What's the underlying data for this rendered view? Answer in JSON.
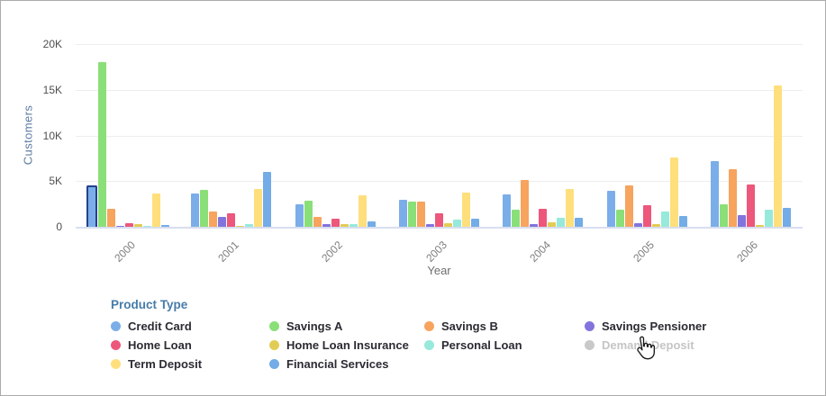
{
  "widget": {
    "background": "#FFFFFF",
    "border_color": "#ABABAB"
  },
  "chart_data": {
    "type": "bar",
    "title": "",
    "xlabel": "Year",
    "ylabel": "Customers",
    "categories": [
      "2000",
      "2001",
      "2002",
      "2003",
      "2004",
      "2005",
      "2006"
    ],
    "series": [
      {
        "name": "Credit Card",
        "color": "#7BAEE8",
        "enabled": true,
        "values": [
          4300,
          3600,
          2500,
          3000,
          3500,
          3900,
          7200
        ]
      },
      {
        "name": "Savings A",
        "color": "#8ADF79",
        "enabled": true,
        "values": [
          18000,
          4000,
          2900,
          2800,
          1900,
          1900,
          2500
        ]
      },
      {
        "name": "Savings B",
        "color": "#F6A45E",
        "enabled": true,
        "values": [
          2000,
          1700,
          1100,
          2800,
          5100,
          4500,
          6300
        ]
      },
      {
        "name": "Savings Pensioner",
        "color": "#8274DD",
        "enabled": true,
        "values": [
          50,
          1050,
          250,
          300,
          300,
          400,
          1300
        ]
      },
      {
        "name": "Home Loan",
        "color": "#EC577B",
        "enabled": true,
        "values": [
          350,
          1500,
          900,
          1450,
          2000,
          2400,
          4600
        ]
      },
      {
        "name": "Home Loan Insurance",
        "color": "#E2CC55",
        "enabled": true,
        "values": [
          250,
          100,
          300,
          400,
          500,
          300,
          200
        ]
      },
      {
        "name": "Personal Loan",
        "color": "#96E9DB",
        "enabled": true,
        "values": [
          50,
          300,
          250,
          800,
          1000,
          1700,
          1900
        ]
      },
      {
        "name": "Demand Deposit",
        "color": "#C9C9C9",
        "enabled": false,
        "values": []
      },
      {
        "name": "Term Deposit",
        "color": "#FFDF7C",
        "enabled": true,
        "values": [
          3600,
          4100,
          3400,
          3700,
          4100,
          7600,
          15500
        ]
      },
      {
        "name": "Financial Services",
        "color": "#73ACE6",
        "enabled": true,
        "values": [
          150,
          6000,
          600,
          900,
          1000,
          1200,
          2100
        ]
      }
    ],
    "ylim": [
      0,
      20000
    ],
    "y_ticks": [
      {
        "value": 20000,
        "label": "20K"
      },
      {
        "value": 15000,
        "label": "15K"
      },
      {
        "value": 10000,
        "label": "10K"
      },
      {
        "value": 5000,
        "label": "5K"
      },
      {
        "value": 0,
        "label": "0"
      }
    ],
    "grid": "horizontal",
    "legend_position": "bottom",
    "highlighted_bar": {
      "series": "Credit Card",
      "category": "2000",
      "border_color": "#24418C"
    }
  },
  "axes": {
    "y_title": "Customers",
    "x_title": "Year"
  },
  "legend": {
    "title": "Product Type",
    "title_color": "#467CA9",
    "disabled_text_color": "#C5C5C5",
    "items": [
      {
        "label": "Credit Card",
        "enabled": true
      },
      {
        "label": "Savings A",
        "enabled": true
      },
      {
        "label": "Savings B",
        "enabled": true
      },
      {
        "label": "Savings Pensioner",
        "enabled": true
      },
      {
        "label": "Home Loan",
        "enabled": true
      },
      {
        "label": "Home Loan Insurance",
        "enabled": true
      },
      {
        "label": "Personal Loan",
        "enabled": true
      },
      {
        "label": "Demand Deposit",
        "enabled": false
      },
      {
        "label": "Term Deposit",
        "enabled": true
      },
      {
        "label": "Financial Services",
        "enabled": true
      }
    ]
  },
  "pointer": {
    "icon": "hand-pointer-cursor"
  }
}
